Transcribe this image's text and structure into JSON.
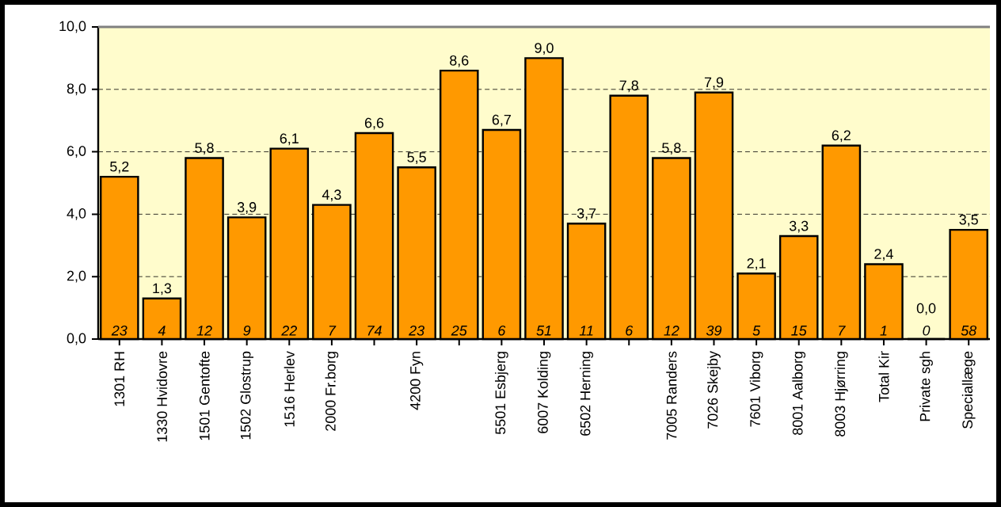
{
  "chart_data": {
    "type": "bar",
    "categories": [
      "1301 RH",
      "1330 Hvidovre",
      "1501 Gentofte",
      "1502 Glostrup",
      "1516 Herlev",
      "2000 Fr.borg",
      null,
      "4200 Fyn",
      null,
      "5501 Esbjerg",
      "6007 Kolding",
      "6502 Herning",
      null,
      "7005 Randers",
      "7026 Skejby",
      "7601 Viborg",
      "8001 Aalborg",
      "8003 Hjørring",
      "Total Kir",
      "Private sgh",
      "Speciallæge"
    ],
    "values": [
      5.2,
      1.3,
      5.8,
      3.9,
      6.1,
      4.3,
      6.6,
      5.5,
      8.6,
      6.7,
      9.0,
      3.7,
      7.8,
      5.8,
      7.9,
      2.1,
      3.3,
      6.2,
      2.4,
      0.0,
      3.5
    ],
    "value_labels": [
      "5,2",
      "1,3",
      "5,8",
      "3,9",
      "6,1",
      "4,3",
      "6,6",
      "5,5",
      "8,6",
      "6,7",
      "9,0",
      "3,7",
      "7,8",
      "5,8",
      "7,9",
      "2,1",
      "3,3",
      "6,2",
      "2,4",
      "0,0",
      "3,5"
    ],
    "color": "#ff9900",
    "annotations": [
      "23",
      "4",
      "12",
      "9",
      "22",
      "7",
      "74",
      "23",
      "25",
      "6",
      "51",
      "11",
      "6",
      "12",
      "39",
      "5",
      "15",
      "7",
      "1",
      "0",
      "58"
    ],
    "ylim": [
      0,
      10
    ],
    "yticks": [
      {
        "value": 0,
        "label": "0,0"
      },
      {
        "value": 2,
        "label": "2,0"
      },
      {
        "value": 4,
        "label": "4,0"
      },
      {
        "value": 6,
        "label": "6,0"
      },
      {
        "value": 8,
        "label": "8,0"
      },
      {
        "value": 10,
        "label": "10,0"
      }
    ],
    "grid": "y"
  }
}
